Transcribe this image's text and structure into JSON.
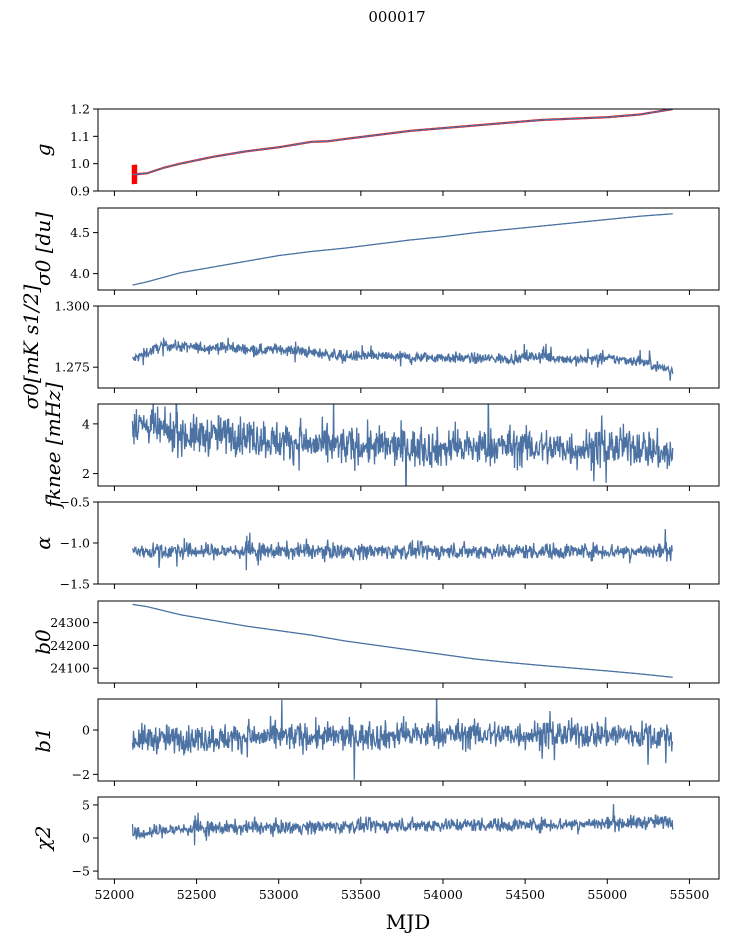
{
  "title": "000017",
  "xlabel": "MJD",
  "line_color": "#4c72a4",
  "error_color": "#ff0000",
  "chart_data": [
    {
      "type": "line",
      "name": "g",
      "ylabel": "g",
      "xlim": [
        51900,
        55680
      ],
      "ylim": [
        0.9,
        1.2
      ],
      "yticks": [
        0.9,
        1.0,
        1.1,
        1.2
      ],
      "ytick_labels": [
        "0.9",
        "1.0",
        "1.1",
        "1.2"
      ],
      "x": [
        52110,
        52200,
        52300,
        52400,
        52600,
        52800,
        53000,
        53200,
        53300,
        53400,
        53600,
        53800,
        54000,
        54200,
        54400,
        54600,
        54800,
        55000,
        55100,
        55200,
        55300,
        55400
      ],
      "y": [
        0.96,
        0.965,
        0.985,
        1.0,
        1.025,
        1.045,
        1.06,
        1.08,
        1.082,
        1.09,
        1.105,
        1.12,
        1.13,
        1.14,
        1.15,
        1.16,
        1.165,
        1.17,
        1.175,
        1.18,
        1.19,
        1.2
      ],
      "errorbars": true
    },
    {
      "type": "line",
      "name": "sigma0_du",
      "ylabel": "σ0 [du]",
      "xlim": [
        51900,
        55680
      ],
      "ylim": [
        3.8,
        4.8
      ],
      "yticks": [
        4.0,
        4.5
      ],
      "ytick_labels": [
        "4.0",
        "4.5"
      ],
      "x": [
        52110,
        52200,
        52400,
        52600,
        52800,
        53000,
        53200,
        53400,
        53600,
        53800,
        54000,
        54200,
        54400,
        54600,
        54800,
        55000,
        55200,
        55400
      ],
      "y": [
        3.86,
        3.9,
        4.01,
        4.08,
        4.15,
        4.22,
        4.27,
        4.31,
        4.36,
        4.41,
        4.45,
        4.5,
        4.54,
        4.58,
        4.62,
        4.66,
        4.7,
        4.73
      ]
    },
    {
      "type": "line",
      "name": "sigma0_mK",
      "ylabel": "σ0[mK s1/2]",
      "xlim": [
        51900,
        55680
      ],
      "ylim": [
        1.2665,
        1.3
      ],
      "yticks": [
        1.275,
        1.3
      ],
      "ytick_labels": [
        "1.275",
        "1.300"
      ],
      "x": [
        52110,
        52200,
        52300,
        52500,
        52700,
        52900,
        53000,
        53200,
        53400,
        53600,
        53800,
        54000,
        54200,
        54400,
        54600,
        54800,
        55000,
        55200,
        55400
      ],
      "y": [
        1.278,
        1.281,
        1.284,
        1.283,
        1.283,
        1.282,
        1.2825,
        1.281,
        1.2795,
        1.2795,
        1.279,
        1.279,
        1.2785,
        1.2785,
        1.2795,
        1.278,
        1.2785,
        1.2775,
        1.2735
      ],
      "noise": 0.0016
    },
    {
      "type": "line",
      "name": "fknee",
      "ylabel": "fknee [mHz]",
      "xlim": [
        51900,
        55680
      ],
      "ylim": [
        1.5,
        4.8
      ],
      "yticks": [
        2,
        4
      ],
      "ytick_labels": [
        "2",
        "4"
      ],
      "x": [
        52110,
        52300,
        52500,
        52700,
        53000,
        53300,
        53600,
        54000,
        54400,
        54800,
        55200,
        55400
      ],
      "y": [
        4.1,
        3.7,
        3.5,
        3.6,
        3.3,
        3.1,
        3.1,
        3.0,
        3.1,
        3.0,
        3.1,
        2.7
      ],
      "noise": 0.55
    },
    {
      "type": "line",
      "name": "alpha",
      "ylabel": "α",
      "xlim": [
        51900,
        55680
      ],
      "ylim": [
        -1.5,
        -0.5
      ],
      "yticks": [
        -1.5,
        -1.0,
        -0.5
      ],
      "ytick_labels": [
        "−1.5",
        "−1.0",
        "−0.5"
      ],
      "x": [
        52110,
        52500,
        53000,
        53500,
        54000,
        54500,
        55000,
        55400
      ],
      "y": [
        -1.1,
        -1.1,
        -1.1,
        -1.1,
        -1.1,
        -1.1,
        -1.1,
        -1.1
      ],
      "noise": 0.07
    },
    {
      "type": "line",
      "name": "b0",
      "ylabel": "b0",
      "xlim": [
        51900,
        55680
      ],
      "ylim": [
        24035,
        24395
      ],
      "yticks": [
        24100,
        24200,
        24300
      ],
      "ytick_labels": [
        "24100",
        "24200",
        "24300"
      ],
      "x": [
        52110,
        52200,
        52400,
        52600,
        52800,
        53000,
        53200,
        53400,
        53600,
        53800,
        54000,
        54200,
        54400,
        54600,
        54800,
        55000,
        55200,
        55400
      ],
      "y": [
        24380,
        24370,
        24335,
        24310,
        24285,
        24265,
        24245,
        24220,
        24200,
        24180,
        24160,
        24140,
        24125,
        24112,
        24100,
        24088,
        24075,
        24060
      ]
    },
    {
      "type": "line",
      "name": "b1",
      "ylabel": "b1",
      "xlim": [
        51900,
        55680
      ],
      "ylim": [
        -2.3,
        1.4
      ],
      "yticks": [
        -2,
        0
      ],
      "ytick_labels": [
        "−2",
        "0"
      ],
      "x": [
        52110,
        52500,
        53000,
        53500,
        54000,
        54500,
        55000,
        55400
      ],
      "y": [
        -0.4,
        -0.4,
        -0.3,
        -0.3,
        -0.2,
        -0.2,
        -0.2,
        -0.3
      ],
      "noise": 0.45
    },
    {
      "type": "line",
      "name": "chi2",
      "ylabel": "χ2",
      "xlim": [
        51900,
        55680
      ],
      "ylim": [
        -6.2,
        6.2
      ],
      "yticks": [
        -5,
        0,
        5
      ],
      "ytick_labels": [
        "−5",
        "0",
        "5"
      ],
      "xticks": [
        52000,
        52500,
        53000,
        53500,
        54000,
        54500,
        55000,
        55500
      ],
      "xtick_labels": [
        "52000",
        "52500",
        "53000",
        "53500",
        "54000",
        "54500",
        "55000",
        "55500"
      ],
      "x": [
        52110,
        52300,
        52600,
        53000,
        53500,
        54000,
        54500,
        55000,
        55400
      ],
      "y": [
        0.4,
        1.2,
        1.5,
        1.6,
        1.8,
        2.0,
        2.0,
        2.2,
        2.5
      ],
      "noise": 0.75
    }
  ]
}
